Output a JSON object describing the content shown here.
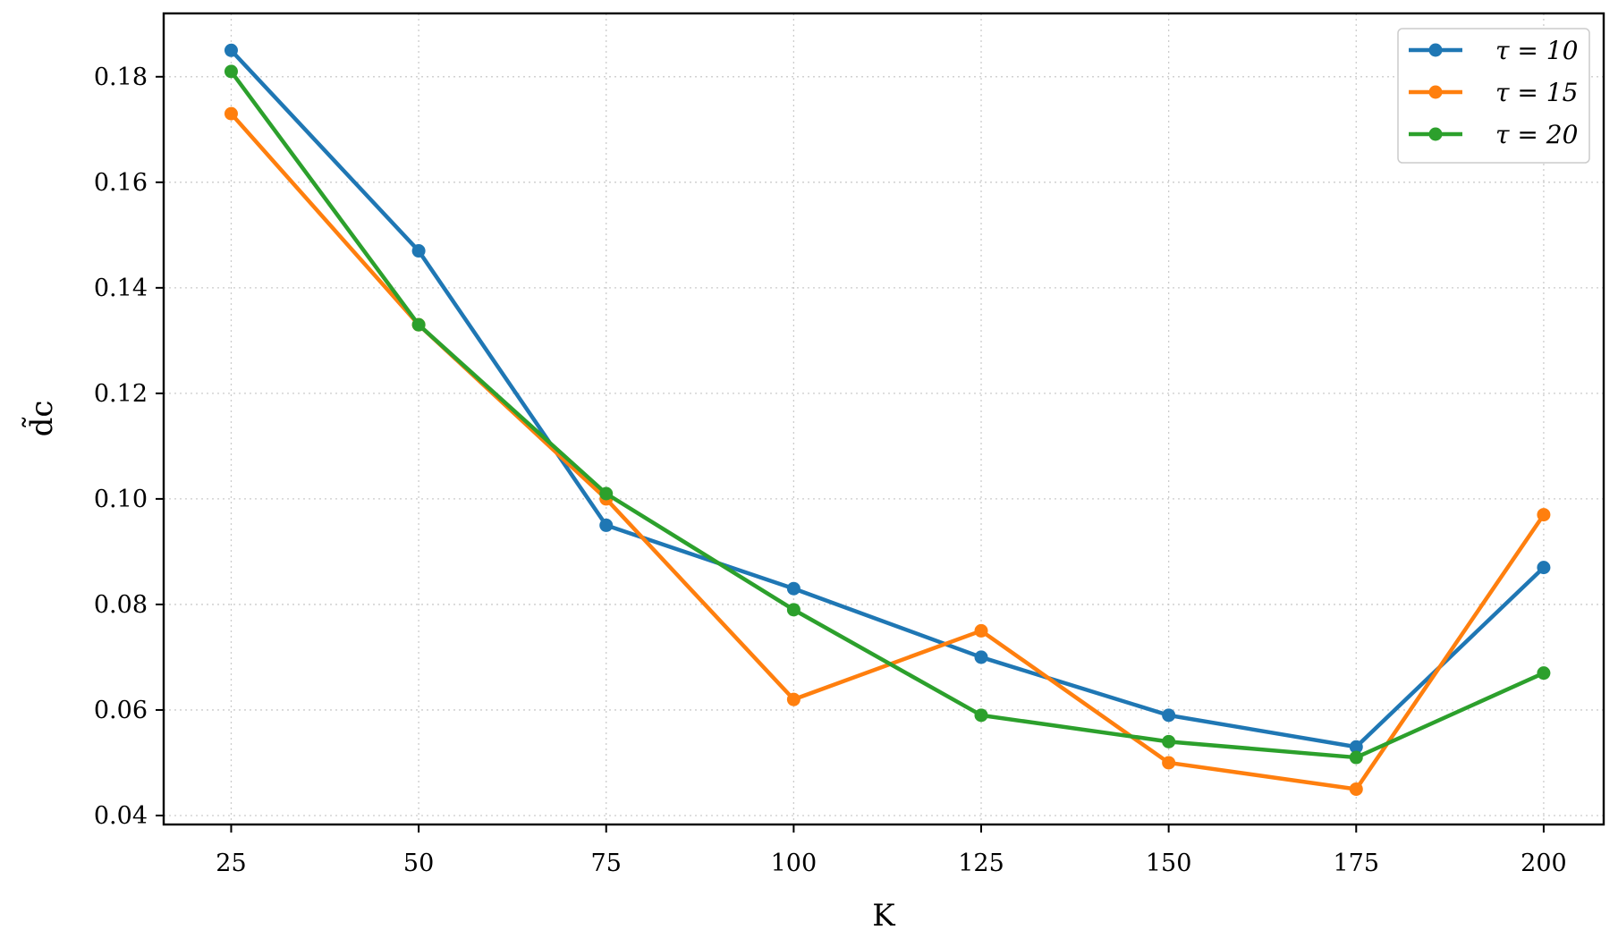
{
  "chart_data": {
    "type": "line",
    "title": "",
    "xlabel": "K",
    "ylabel": "d̃c",
    "x": [
      25,
      50,
      75,
      100,
      125,
      150,
      175,
      200
    ],
    "xticks": [
      25,
      50,
      75,
      100,
      125,
      150,
      175,
      200
    ],
    "yticks": [
      "0.04",
      "0.06",
      "0.08",
      "0.10",
      "0.12",
      "0.14",
      "0.16",
      "0.18"
    ],
    "xlim": [
      16,
      208
    ],
    "ylim": [
      0.0383,
      0.192
    ],
    "grid": true,
    "legend_position": "top-right",
    "series": [
      {
        "name": "τ = 10",
        "color": "#1f77b4",
        "values": [
          0.185,
          0.147,
          0.095,
          0.083,
          0.07,
          0.059,
          0.053,
          0.087
        ]
      },
      {
        "name": "τ = 15",
        "color": "#ff7f0e",
        "values": [
          0.173,
          0.133,
          0.1,
          0.062,
          0.075,
          0.05,
          0.045,
          0.097
        ]
      },
      {
        "name": "τ = 20",
        "color": "#2ca02c",
        "values": [
          0.181,
          0.133,
          0.101,
          0.079,
          0.059,
          0.054,
          0.051,
          0.067
        ]
      }
    ]
  }
}
